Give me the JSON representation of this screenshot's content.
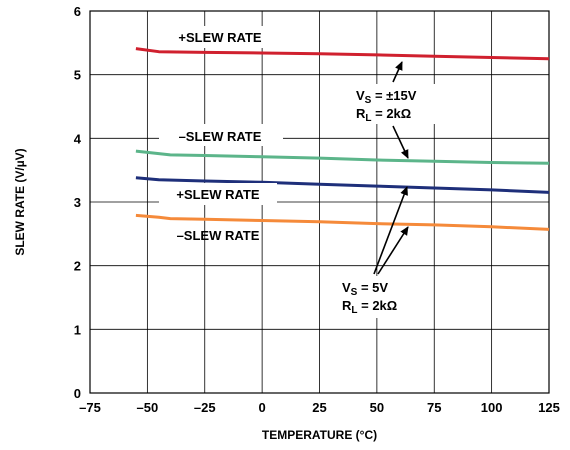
{
  "chart_data": {
    "type": "line",
    "xlabel": "TEMPERATURE (°C)",
    "ylabel": "SLEW RATE (V/µV)",
    "xlim": [
      -75,
      125
    ],
    "ylim": [
      0,
      6
    ],
    "x_ticks": [
      "–75",
      "–50",
      "–25",
      "0",
      "25",
      "50",
      "75",
      "100",
      "125"
    ],
    "y_ticks": [
      "0",
      "1",
      "2",
      "3",
      "4",
      "5",
      "6"
    ],
    "grid": true,
    "series": [
      {
        "name": "+SLEW RATE",
        "color": "#d0202e",
        "x": [
          -55,
          -45,
          -25,
          0,
          25,
          50,
          75,
          100,
          125
        ],
        "y": [
          5.41,
          5.36,
          5.35,
          5.34,
          5.33,
          5.31,
          5.29,
          5.27,
          5.25
        ]
      },
      {
        "name": "–SLEW RATE",
        "color": "#5cb58a",
        "x": [
          -55,
          -45,
          -40,
          -25,
          0,
          25,
          50,
          75,
          100,
          125
        ],
        "y": [
          3.8,
          3.76,
          3.74,
          3.73,
          3.71,
          3.69,
          3.66,
          3.64,
          3.62,
          3.61
        ]
      },
      {
        "name": "+SLEW RATE",
        "color": "#1e2f7a",
        "x": [
          -55,
          -45,
          -25,
          0,
          25,
          50,
          75,
          100,
          125
        ],
        "y": [
          3.38,
          3.35,
          3.33,
          3.31,
          3.28,
          3.25,
          3.22,
          3.19,
          3.15
        ]
      },
      {
        "name": "–SLEW RATE",
        "color": "#f58a3a",
        "x": [
          -55,
          -45,
          -40,
          -25,
          0,
          25,
          50,
          75,
          100,
          125
        ],
        "y": [
          2.79,
          2.76,
          2.74,
          2.73,
          2.71,
          2.69,
          2.66,
          2.64,
          2.61,
          2.57
        ]
      }
    ],
    "annotations": {
      "top_plus": "+SLEW RATE",
      "mid_minus": "–SLEW RATE",
      "mid_plus": "+SLEW RATE",
      "bottom_minus": "–SLEW RATE",
      "vs1_main": "V",
      "vs1_sub": "S",
      "vs1_rest": " = ±15V",
      "rl1_main": "R",
      "rl1_sub": "L",
      "rl1_rest": " = 2kΩ",
      "vs2_main": "V",
      "vs2_sub": "S",
      "vs2_rest": " = 5V",
      "rl2_main": "R",
      "rl2_sub": "L",
      "rl2_rest": " = 2kΩ"
    }
  }
}
